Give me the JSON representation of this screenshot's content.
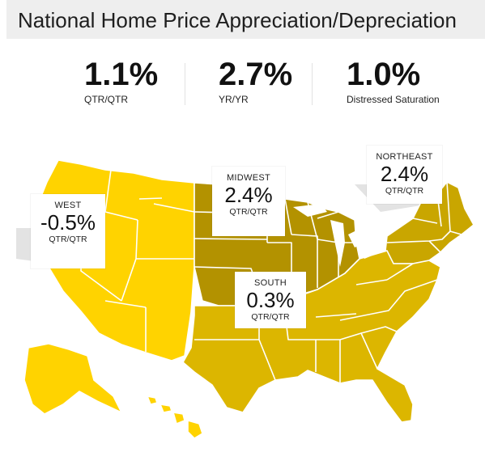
{
  "header": {
    "title": "National Home Price Appreciation/Depreciation"
  },
  "stats": [
    {
      "value": "1.1%",
      "label": "QTR/QTR"
    },
    {
      "value": "2.7%",
      "label": "YR/YR"
    },
    {
      "value": "1.0%",
      "label": "Distressed Saturation"
    }
  ],
  "regions": {
    "west": {
      "name": "WEST",
      "value": "-0.5%",
      "period": "QTR/QTR",
      "color": "#ffd300"
    },
    "midwest": {
      "name": "MIDWEST",
      "value": "2.4%",
      "period": "QTR/QTR",
      "color": "#b39200"
    },
    "northeast": {
      "name": "NORTHEAST",
      "value": "2.4%",
      "period": "QTR/QTR",
      "color": "#c9a600"
    },
    "south": {
      "name": "SOUTH",
      "value": "0.3%",
      "period": "QTR/QTR",
      "color": "#dcb600"
    }
  }
}
